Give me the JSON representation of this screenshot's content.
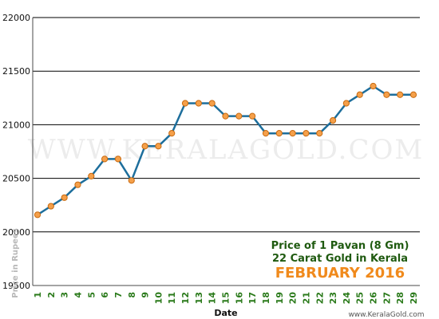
{
  "chart_data": {
    "type": "line",
    "title_lines": [
      "Price of 1 Pavan (8 Gm)",
      "22 Carat Gold in Kerala"
    ],
    "subtitle": "FEBRUARY 2016",
    "xlabel": "Date",
    "ylabel": "Price in Rupees",
    "ylim": [
      19500,
      22000
    ],
    "yticks": [
      19500,
      20000,
      20500,
      21000,
      21500,
      22000
    ],
    "x": [
      1,
      2,
      3,
      4,
      5,
      6,
      7,
      8,
      9,
      10,
      11,
      12,
      13,
      14,
      15,
      16,
      17,
      18,
      19,
      20,
      21,
      22,
      23,
      24,
      25,
      26,
      27,
      28,
      29
    ],
    "y": [
      20160,
      20240,
      20320,
      20440,
      20520,
      20680,
      20680,
      20480,
      20800,
      20800,
      20920,
      21200,
      21200,
      21200,
      21080,
      21080,
      21080,
      20920,
      20920,
      20920,
      20920,
      20920,
      21040,
      21200,
      21280,
      21360,
      21280,
      21280,
      21280
    ],
    "grid": "horizontal",
    "watermark": "WWW.KERALAGOLD.COM",
    "credit": "www.KeralaGold.com",
    "colors": {
      "line": "#1d6e9c",
      "marker_fill": "#f5a04a",
      "marker_stroke": "#c86a10",
      "grid": "#000000",
      "axis": "#4a4a4a"
    }
  }
}
